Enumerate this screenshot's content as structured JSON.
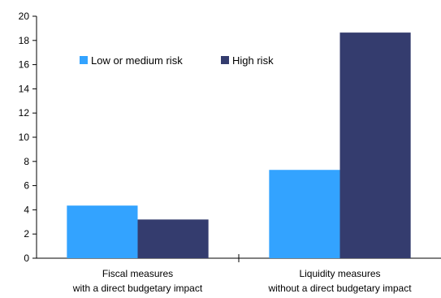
{
  "chart_data": {
    "type": "bar",
    "title": "",
    "xlabel": "",
    "ylabel": "",
    "ylim": [
      0,
      20
    ],
    "yticks": [
      0,
      2,
      4,
      6,
      8,
      10,
      12,
      14,
      16,
      18,
      20
    ],
    "grid": false,
    "legend_position": "top-left",
    "categories": [
      {
        "line1": "Fiscal measures",
        "line2": "with a direct budgetary impact"
      },
      {
        "line1": "Liquidity measures",
        "line2": "without a direct budgetary impact"
      }
    ],
    "series": [
      {
        "name": "Low or medium risk",
        "color": "#33a3ff",
        "values": [
          4.35,
          7.3
        ]
      },
      {
        "name": "High risk",
        "color": "#343c6e",
        "values": [
          3.2,
          18.65
        ]
      }
    ]
  }
}
